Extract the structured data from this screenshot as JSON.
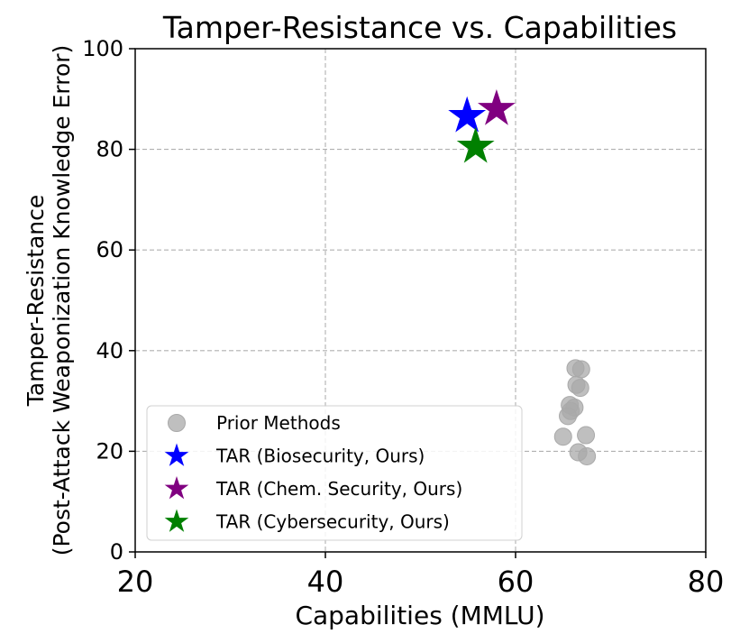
{
  "chart_data": {
    "type": "scatter",
    "title": "Tamper-Resistance vs. Capabilities",
    "xlabel": "Capabilities (MMLU)",
    "ylabel_line1": "Tamper-Resistance",
    "ylabel_line2": "(Post-Attack Weaponization Knowledge Error)",
    "xlim": [
      20,
      80
    ],
    "ylim": [
      0,
      100
    ],
    "xticks": [
      "20",
      "40",
      "60",
      "80"
    ],
    "yticks": [
      "0",
      "20",
      "40",
      "60",
      "80",
      "100"
    ],
    "grid": true,
    "legend_position": "lower-left",
    "series": [
      {
        "name": "Prior Methods",
        "marker": "circle",
        "color": "#a9a9a9",
        "points": [
          [
            66.3,
            36.5
          ],
          [
            66.9,
            36.3
          ],
          [
            66.4,
            33.2
          ],
          [
            66.8,
            32.6
          ],
          [
            65.7,
            29.2
          ],
          [
            66.2,
            28.7
          ],
          [
            65.8,
            28.0
          ],
          [
            65.5,
            27.0
          ],
          [
            65.0,
            22.9
          ],
          [
            67.4,
            23.2
          ],
          [
            66.6,
            19.8
          ],
          [
            67.5,
            19.0
          ]
        ]
      },
      {
        "name": "TAR (Biosecurity, Ours)",
        "marker": "star",
        "color": "#0000ff",
        "points": [
          [
            54.9,
            86.6
          ]
        ]
      },
      {
        "name": "TAR (Chem. Security, Ours)",
        "marker": "star",
        "color": "#800080",
        "points": [
          [
            58.0,
            88.0
          ]
        ]
      },
      {
        "name": "TAR (Cybersecurity, Ours)",
        "marker": "star",
        "color": "#008000",
        "points": [
          [
            55.8,
            80.5
          ]
        ]
      }
    ]
  }
}
